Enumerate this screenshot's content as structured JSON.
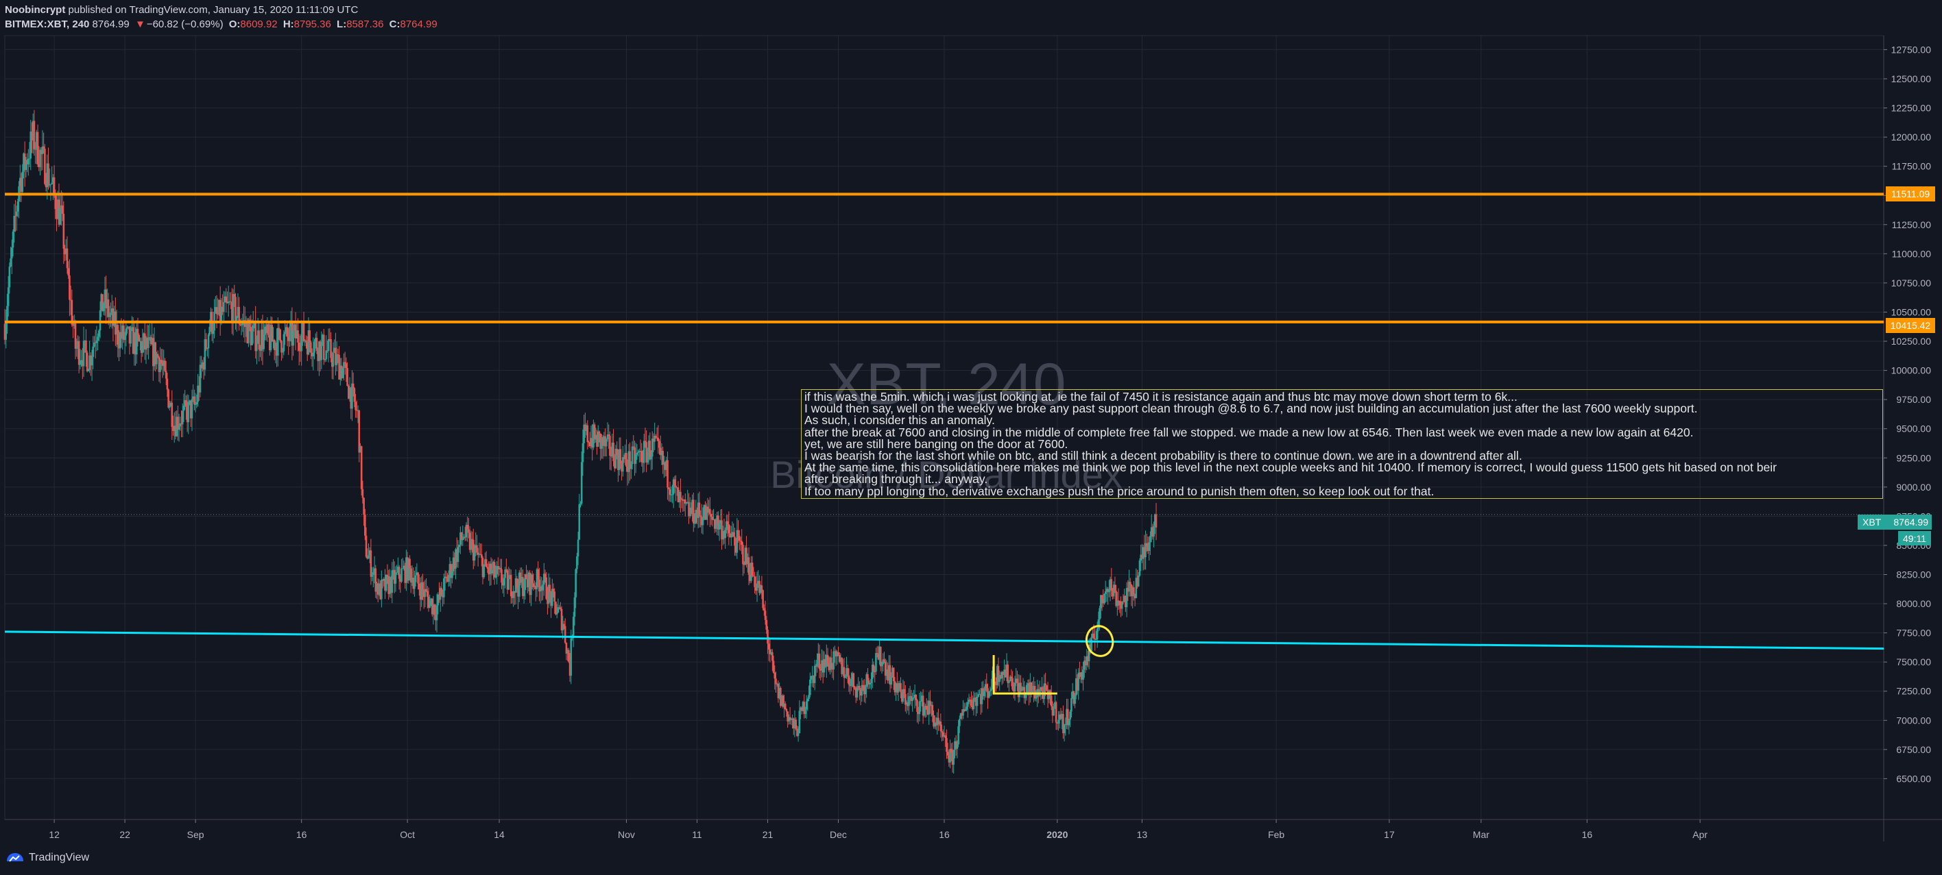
{
  "header": {
    "author": "Noobincrypt",
    "published_text": "published on TradingView.com, January 15, 2020 11:11:09 UTC",
    "symbol": "BITMEX:XBT, 240",
    "last": "8764.99",
    "change_arrow": "▼",
    "change": "−60.82 (−0.69%)",
    "o_label": "O:",
    "o": "8609.92",
    "h_label": "H:",
    "h": "8795.36",
    "l_label": "L:",
    "l": "8587.36",
    "c_label": "C:",
    "c": "8764.99"
  },
  "watermark": {
    "line1": "XBT, 240",
    "line2": "Bitcoin / Dollar Index"
  },
  "annotation": {
    "lines": [
      "if this was the 5min. which i was just looking at. ie the fail of 7450 it is resistance again and thus btc may move down short term to 6k...",
      "I would then say, well on the weekly we broke any past support clean through @8.6 to 6.7, and now just building an accumulation just after the last 7600 weekly support.",
      "As such, i consider this an anomaly.",
      "after the break at 7600 and closing in the middle of complete free fall we stopped. we made a new low at 6546. Then last week we even made a new low again at 6420.",
      "yet, we are still here banging on the door at 7600.",
      "I was bearish for the last short while on btc, and still think a decent probability is there to continue down. we are in a downtrend after all.",
      "At the same time, this consolidation here makes me think we pop this level in the next couple weeks and hit 10400. If memory is correct, I would guess 11500 gets hit based on not beir",
      "after breaking through it... anyway.",
      "If too many ppl longing tho, derivative exchanges push the price around to punish them often, so keep look out for that."
    ]
  },
  "price_tags": {
    "level_high": "11511.09",
    "level_mid": "10415.42",
    "last_symbol": "XBT",
    "last_value": "8764.99",
    "countdown": "49:11"
  },
  "footer": {
    "brand": "TradingView"
  },
  "colors": {
    "background": "#131722",
    "up": "#26a69a",
    "down": "#ef5350",
    "level": "#ff9800",
    "trendline": "#00e5ff",
    "annotation_box": "#c9c43a",
    "marker": "#ffeb3b"
  },
  "chart_data": {
    "type": "candlestick",
    "symbol": "BITMEX:XBT",
    "interval": "240",
    "y_ticks": [
      6500,
      6750,
      7000,
      7250,
      7500,
      7750,
      8000,
      8250,
      8500,
      8750,
      9000,
      9250,
      9500,
      9750,
      10000,
      10250,
      10500,
      10750,
      11000,
      11250,
      11500,
      11750,
      12000,
      12250,
      12500,
      12750
    ],
    "ylim": [
      6150,
      12870
    ],
    "x_range": [
      "2019-08-05",
      "2020-04-27"
    ],
    "x_ticks": [
      {
        "label": "12",
        "date": "2019-08-12"
      },
      {
        "label": "22",
        "date": "2019-08-22"
      },
      {
        "label": "Sep",
        "date": "2019-09-01"
      },
      {
        "label": "16",
        "date": "2019-09-16"
      },
      {
        "label": "Oct",
        "date": "2019-10-01"
      },
      {
        "label": "14",
        "date": "2019-10-14"
      },
      {
        "label": "Nov",
        "date": "2019-11-01"
      },
      {
        "label": "11",
        "date": "2019-11-11"
      },
      {
        "label": "21",
        "date": "2019-11-21"
      },
      {
        "label": "Dec",
        "date": "2019-12-01"
      },
      {
        "label": "16",
        "date": "2019-12-16"
      },
      {
        "label": "2020",
        "date": "2020-01-01",
        "bold": true
      },
      {
        "label": "13",
        "date": "2020-01-13"
      },
      {
        "label": "Feb",
        "date": "2020-02-01"
      },
      {
        "label": "17",
        "date": "2020-02-17"
      },
      {
        "label": "Mar",
        "date": "2020-03-01"
      },
      {
        "label": "16",
        "date": "2020-03-16"
      },
      {
        "label": "Apr",
        "date": "2020-04-01"
      }
    ],
    "price_path": [
      [
        "2019-08-05",
        10400
      ],
      [
        "2019-08-07",
        11600
      ],
      [
        "2019-08-09",
        12000
      ],
      [
        "2019-08-11",
        11700
      ],
      [
        "2019-08-13",
        11300
      ],
      [
        "2019-08-15",
        10200
      ],
      [
        "2019-08-17",
        10100
      ],
      [
        "2019-08-19",
        10600
      ],
      [
        "2019-08-21",
        10300
      ],
      [
        "2019-08-23",
        10250
      ],
      [
        "2019-08-25",
        10200
      ],
      [
        "2019-08-27",
        10100
      ],
      [
        "2019-08-29",
        9550
      ],
      [
        "2019-09-01",
        9700
      ],
      [
        "2019-09-03",
        10400
      ],
      [
        "2019-09-06",
        10550
      ],
      [
        "2019-09-09",
        10300
      ],
      [
        "2019-09-12",
        10250
      ],
      [
        "2019-09-16",
        10300
      ],
      [
        "2019-09-20",
        10150
      ],
      [
        "2019-09-22",
        10000
      ],
      [
        "2019-09-24",
        9600
      ],
      [
        "2019-09-25",
        8500
      ],
      [
        "2019-09-27",
        8100
      ],
      [
        "2019-10-01",
        8300
      ],
      [
        "2019-10-05",
        7950
      ],
      [
        "2019-10-09",
        8600
      ],
      [
        "2019-10-12",
        8300
      ],
      [
        "2019-10-16",
        8150
      ],
      [
        "2019-10-20",
        8200
      ],
      [
        "2019-10-23",
        7850
      ],
      [
        "2019-10-24",
        7450
      ],
      [
        "2019-10-26",
        9450
      ],
      [
        "2019-10-28",
        9400
      ],
      [
        "2019-11-01",
        9200
      ],
      [
        "2019-11-05",
        9350
      ],
      [
        "2019-11-09",
        8800
      ],
      [
        "2019-11-13",
        8750
      ],
      [
        "2019-11-17",
        8500
      ],
      [
        "2019-11-20",
        8100
      ],
      [
        "2019-11-22",
        7300
      ],
      [
        "2019-11-25",
        6900
      ],
      [
        "2019-11-28",
        7500
      ],
      [
        "2019-12-01",
        7500
      ],
      [
        "2019-12-04",
        7250
      ],
      [
        "2019-12-07",
        7550
      ],
      [
        "2019-12-10",
        7200
      ],
      [
        "2019-12-14",
        7100
      ],
      [
        "2019-12-17",
        6650
      ],
      [
        "2019-12-19",
        7150
      ],
      [
        "2019-12-22",
        7250
      ],
      [
        "2019-12-24",
        7450
      ],
      [
        "2019-12-27",
        7250
      ],
      [
        "2019-12-30",
        7250
      ],
      [
        "2020-01-02",
        6950
      ],
      [
        "2020-01-04",
        7350
      ],
      [
        "2020-01-06",
        7650
      ],
      [
        "2020-01-08",
        8200
      ],
      [
        "2020-01-10",
        8000
      ],
      [
        "2020-01-12",
        8150
      ],
      [
        "2020-01-14",
        8600
      ],
      [
        "2020-01-15",
        8765
      ]
    ],
    "horizontal_levels": [
      11511.09,
      10415.42
    ],
    "trendline": [
      [
        "2019-08-05",
        7760
      ],
      [
        "2020-04-27",
        7615
      ]
    ],
    "last_price": 8764.99
  }
}
